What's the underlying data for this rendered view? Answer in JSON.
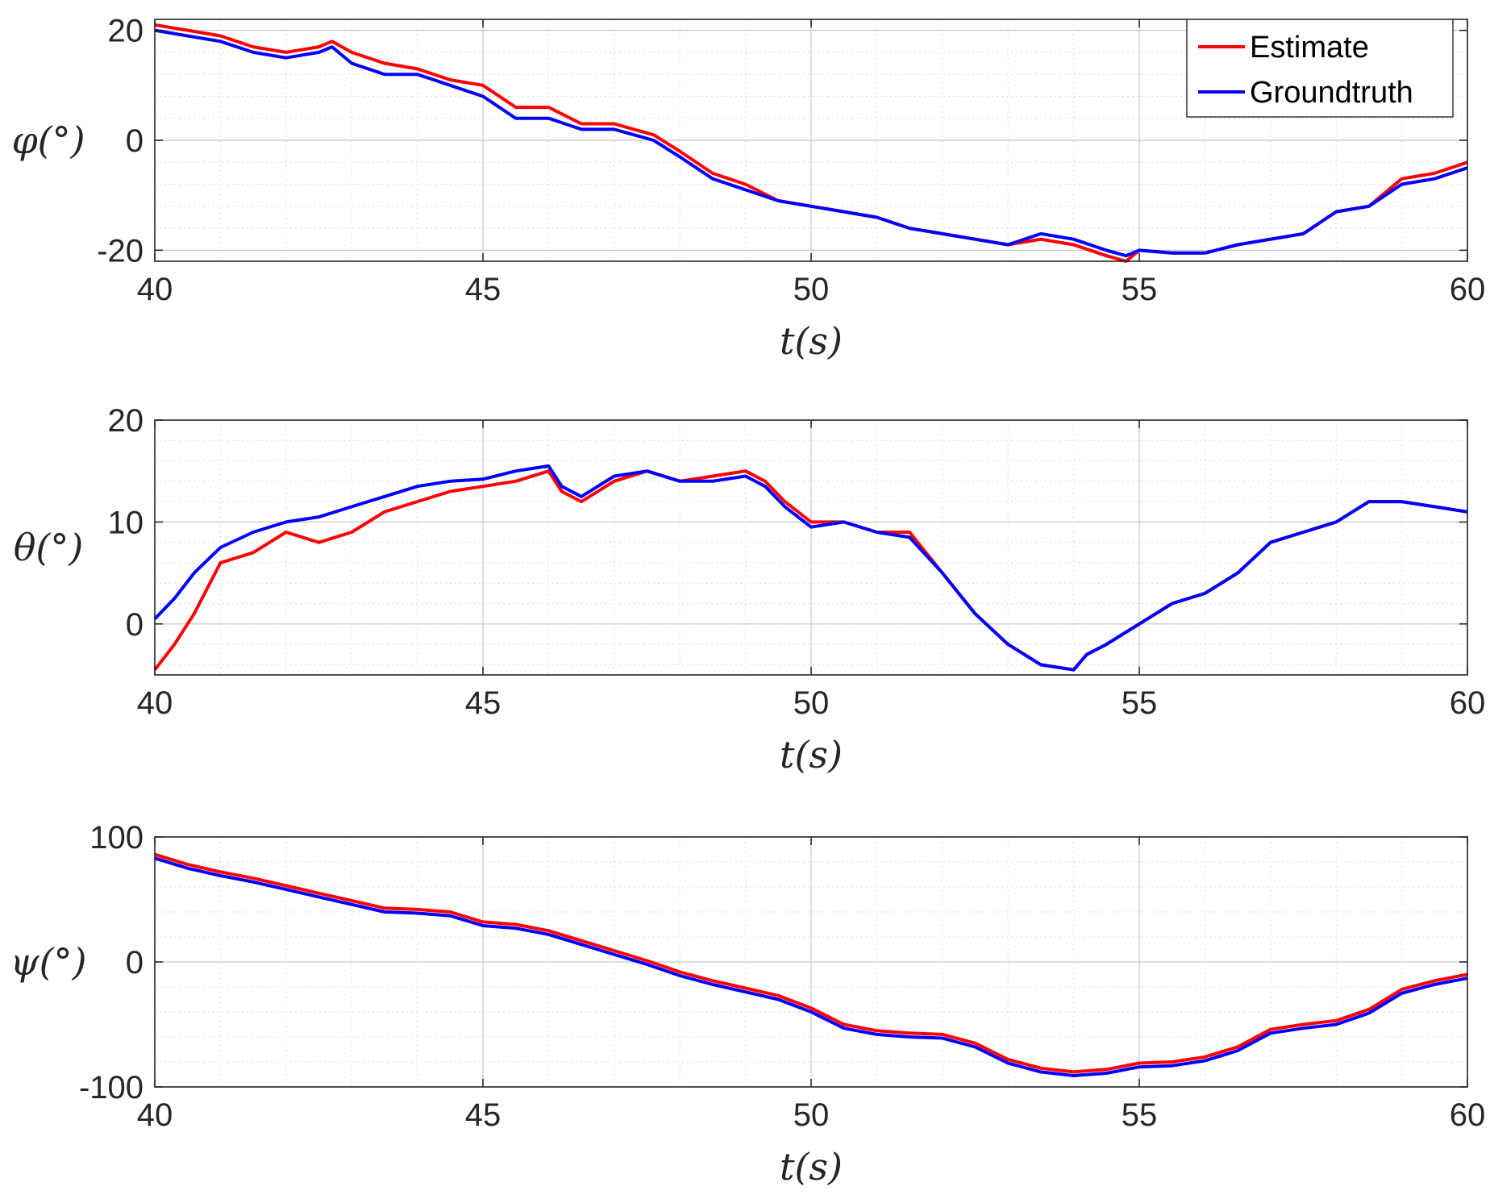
{
  "chart_data": [
    {
      "type": "line",
      "ylabel": "φ(°)",
      "xlabel": "t(s)",
      "xlim": [
        40,
        60
      ],
      "ylim": [
        -22,
        22
      ],
      "xticks": [
        "40",
        "45",
        "50",
        "55",
        "60"
      ],
      "yticks": [
        "-20",
        "0",
        "20"
      ],
      "ytick_values": [
        -20,
        0,
        20
      ],
      "grid": true,
      "minor_grid": true,
      "legend": {
        "placement": "top-right",
        "entries": [
          "Estimate",
          "Groundtruth"
        ]
      },
      "series": [
        {
          "name": "Estimate",
          "color": "#ff0000",
          "x": [
            40,
            40.5,
            41,
            41.5,
            42,
            42.5,
            42.7,
            43,
            43.5,
            44,
            44.5,
            45,
            45.5,
            46,
            46.5,
            47,
            47.3,
            47.6,
            48,
            48.5,
            49,
            49.5,
            50,
            50.5,
            51,
            51.5,
            52,
            52.5,
            53,
            53.5,
            54,
            54.5,
            54.8,
            55,
            55.5,
            56,
            56.5,
            57,
            57.5,
            58,
            58.5,
            59,
            59.5,
            60
          ],
          "y": [
            21,
            20,
            19,
            17,
            16,
            17,
            18,
            16,
            14,
            13,
            11,
            10,
            6,
            6,
            3,
            3,
            2,
            1,
            -2,
            -6,
            -8,
            -11,
            -12,
            -13,
            -14,
            -16,
            -17,
            -18,
            -19,
            -18,
            -19,
            -21,
            -22,
            -20,
            -20.5,
            -20.5,
            -19,
            -18,
            -17,
            -13,
            -12,
            -7,
            -6,
            -4
          ]
        },
        {
          "name": "Groundtruth",
          "color": "#0000ff",
          "x": [
            40,
            40.5,
            41,
            41.5,
            42,
            42.5,
            42.7,
            43,
            43.5,
            44,
            44.5,
            45,
            45.5,
            46,
            46.5,
            47,
            47.3,
            47.6,
            48,
            48.5,
            49,
            49.5,
            50,
            50.5,
            51,
            51.5,
            52,
            52.5,
            53,
            53.5,
            54,
            54.5,
            54.8,
            55,
            55.5,
            56,
            56.5,
            57,
            57.5,
            58,
            58.5,
            59,
            59.5,
            60
          ],
          "y": [
            20,
            19,
            18,
            16,
            15,
            16,
            17,
            14,
            12,
            12,
            10,
            8,
            4,
            4,
            2,
            2,
            1,
            0,
            -3,
            -7,
            -9,
            -11,
            -12,
            -13,
            -14,
            -16,
            -17,
            -18,
            -19,
            -17,
            -18,
            -20,
            -21,
            -20,
            -20.5,
            -20.5,
            -19,
            -18,
            -17,
            -13,
            -12,
            -8,
            -7,
            -5
          ]
        }
      ]
    },
    {
      "type": "line",
      "ylabel": "θ(°)",
      "xlabel": "t(s)",
      "xlim": [
        40,
        60
      ],
      "ylim": [
        -5,
        20
      ],
      "xticks": [
        "40",
        "45",
        "50",
        "55",
        "60"
      ],
      "yticks": [
        "0",
        "10",
        "20"
      ],
      "ytick_values": [
        0,
        10,
        20
      ],
      "grid": true,
      "minor_grid": true,
      "series": [
        {
          "name": "Estimate",
          "color": "#ff0000",
          "x": [
            40,
            40.3,
            40.6,
            41,
            41.5,
            42,
            42.5,
            43,
            43.5,
            44,
            44.5,
            45,
            45.5,
            46,
            46.2,
            46.5,
            47,
            47.5,
            48,
            48.5,
            49,
            49.3,
            49.6,
            50,
            50.5,
            51,
            51.5,
            52,
            52.5,
            53,
            53.5,
            54,
            54.2,
            54.5,
            55,
            55.5,
            56,
            56.5,
            57,
            57.5,
            58,
            58.5,
            59,
            59.5,
            60
          ],
          "y": [
            -4.5,
            -2,
            1,
            6,
            7,
            9,
            8,
            9,
            11,
            12,
            13,
            13.5,
            14,
            15,
            13,
            12,
            14,
            15,
            14,
            14.5,
            15,
            14,
            12,
            10,
            10,
            9,
            9,
            5,
            1,
            -2,
            -4,
            -4.5,
            -3,
            -2,
            0,
            2,
            3,
            5,
            8,
            9,
            10,
            12,
            12,
            11.5,
            11
          ]
        },
        {
          "name": "Groundtruth",
          "color": "#0000ff",
          "x": [
            40,
            40.3,
            40.6,
            41,
            41.5,
            42,
            42.5,
            43,
            43.5,
            44,
            44.5,
            45,
            45.5,
            46,
            46.2,
            46.5,
            47,
            47.5,
            48,
            48.5,
            49,
            49.3,
            49.6,
            50,
            50.5,
            51,
            51.5,
            52,
            52.5,
            53,
            53.5,
            54,
            54.2,
            54.5,
            55,
            55.5,
            56,
            56.5,
            57,
            57.5,
            58,
            58.5,
            59,
            59.5,
            60
          ],
          "y": [
            0.5,
            2.5,
            5,
            7.5,
            9,
            10,
            10.5,
            11.5,
            12.5,
            13.5,
            14,
            14.2,
            15,
            15.5,
            13.5,
            12.5,
            14.5,
            15,
            14,
            14,
            14.5,
            13.5,
            11.5,
            9.5,
            10,
            9,
            8.5,
            5,
            1,
            -2,
            -4,
            -4.5,
            -3,
            -2,
            0,
            2,
            3,
            5,
            8,
            9,
            10,
            12,
            12,
            11.5,
            11
          ]
        }
      ]
    },
    {
      "type": "line",
      "ylabel": "ψ(°)",
      "xlabel": "t(s)",
      "xlim": [
        40,
        60
      ],
      "ylim": [
        -100,
        100
      ],
      "xticks": [
        "40",
        "45",
        "50",
        "55",
        "60"
      ],
      "yticks": [
        "-100",
        "0",
        "100"
      ],
      "ytick_values": [
        -100,
        0,
        100
      ],
      "grid": true,
      "minor_grid": true,
      "series": [
        {
          "name": "Estimate",
          "color": "#ff0000",
          "x": [
            40,
            40.5,
            41,
            41.5,
            42,
            42.5,
            43,
            43.5,
            44,
            44.5,
            45,
            45.5,
            46,
            46.5,
            47,
            47.5,
            48,
            48.5,
            49,
            49.5,
            50,
            50.5,
            51,
            51.5,
            52,
            52.5,
            53,
            53.5,
            54,
            54.5,
            55,
            55.5,
            56,
            56.5,
            57,
            57.5,
            58,
            58.5,
            59,
            59.5,
            60
          ],
          "y": [
            86,
            78,
            72,
            67,
            61,
            55,
            49,
            43,
            42,
            40,
            32,
            30,
            25,
            17,
            9,
            1,
            -8,
            -15,
            -21,
            -27,
            -37,
            -50,
            -55,
            -57,
            -58,
            -65,
            -78,
            -85,
            -88,
            -86,
            -81,
            -80,
            -76,
            -68,
            -54,
            -50,
            -47,
            -38,
            -22,
            -15,
            -10
          ]
        },
        {
          "name": "Groundtruth",
          "color": "#0000ff",
          "x": [
            40,
            40.5,
            41,
            41.5,
            42,
            42.5,
            43,
            43.5,
            44,
            44.5,
            45,
            45.5,
            46,
            46.5,
            47,
            47.5,
            48,
            48.5,
            49,
            49.5,
            50,
            50.5,
            51,
            51.5,
            52,
            52.5,
            53,
            53.5,
            54,
            54.5,
            55,
            55.5,
            56,
            56.5,
            57,
            57.5,
            58,
            58.5,
            59,
            59.5,
            60
          ],
          "y": [
            83,
            75,
            69,
            64,
            58,
            52,
            46,
            40,
            39,
            37,
            29,
            27,
            22,
            14,
            6,
            -2,
            -11,
            -18,
            -24,
            -30,
            -40,
            -53,
            -58,
            -60,
            -61,
            -68,
            -81,
            -88,
            -91,
            -89,
            -84,
            -83,
            -79,
            -71,
            -57,
            -53,
            -50,
            -41,
            -25,
            -18,
            -13
          ]
        }
      ]
    }
  ]
}
